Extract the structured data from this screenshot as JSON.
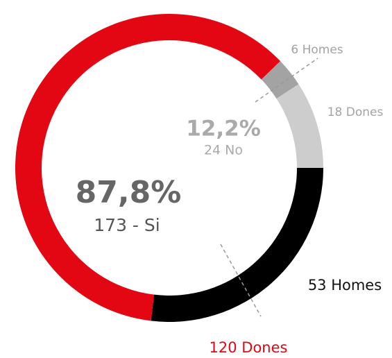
{
  "chart_data": {
    "type": "donut",
    "values": [
      53,
      120,
      6,
      18
    ],
    "value_labels": [
      "53 Homes",
      "120 Dones",
      "6 Homes",
      "18 Dones"
    ],
    "colors": [
      "#000000",
      "#e30613",
      "#a3a3a3",
      "#cdcdcd"
    ],
    "label_colors": [
      "#111111",
      "#e30613",
      "#a3a3a3",
      "#a3a3a3"
    ],
    "annotations": [
      {
        "text": "87,8%",
        "sub": "173 - Si"
      },
      {
        "text": "12,2%",
        "sub": "24 No"
      }
    ]
  }
}
